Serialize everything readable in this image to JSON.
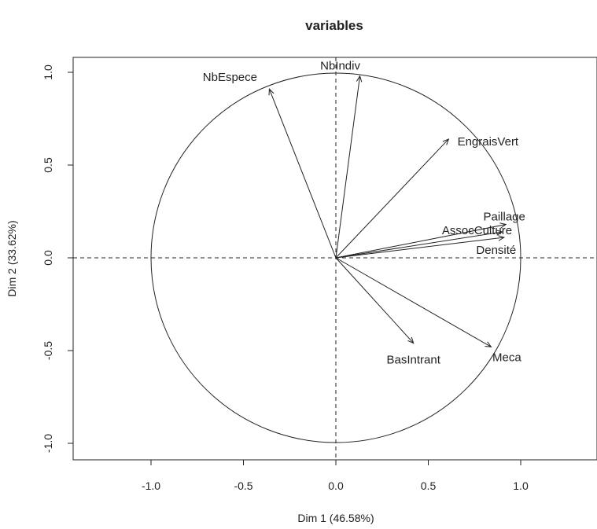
{
  "chart_data": {
    "type": "scatter",
    "subtype": "pca-correlation-circle",
    "title": "variables",
    "xlabel": "Dim 1 (46.58%)",
    "ylabel": "Dim 2 (33.62%)",
    "xlim": [
      -1.4,
      1.4
    ],
    "ylim": [
      -1.1,
      1.1
    ],
    "x_ticks": [
      -1.0,
      -0.5,
      0.0,
      0.5,
      1.0
    ],
    "x_tick_labels": [
      "-1.0",
      "-0.5",
      "0.0",
      "0.5",
      "1.0"
    ],
    "y_ticks": [
      -1.0,
      -0.5,
      0.0,
      0.5,
      1.0
    ],
    "y_tick_labels": [
      "-1.0",
      "-0.5",
      "0.0",
      "0.5",
      "1.0"
    ],
    "unit_circle": true,
    "axis_lines": "dashed-through-origin",
    "grid": false,
    "legend": "none",
    "variables": [
      {
        "label": "NbEspece",
        "x": -0.36,
        "y": 0.91
      },
      {
        "label": "NbIndiv",
        "x": 0.13,
        "y": 0.98
      },
      {
        "label": "EngraisVert",
        "x": 0.61,
        "y": 0.64
      },
      {
        "label": "Paillage",
        "x": 0.92,
        "y": 0.18
      },
      {
        "label": "AssocCulture",
        "x": 0.9,
        "y": 0.14
      },
      {
        "label": "Densité",
        "x": 0.91,
        "y": 0.11
      },
      {
        "label": "BasIntrant",
        "x": 0.42,
        "y": -0.46
      },
      {
        "label": "Meca",
        "x": 0.84,
        "y": -0.48
      }
    ]
  }
}
